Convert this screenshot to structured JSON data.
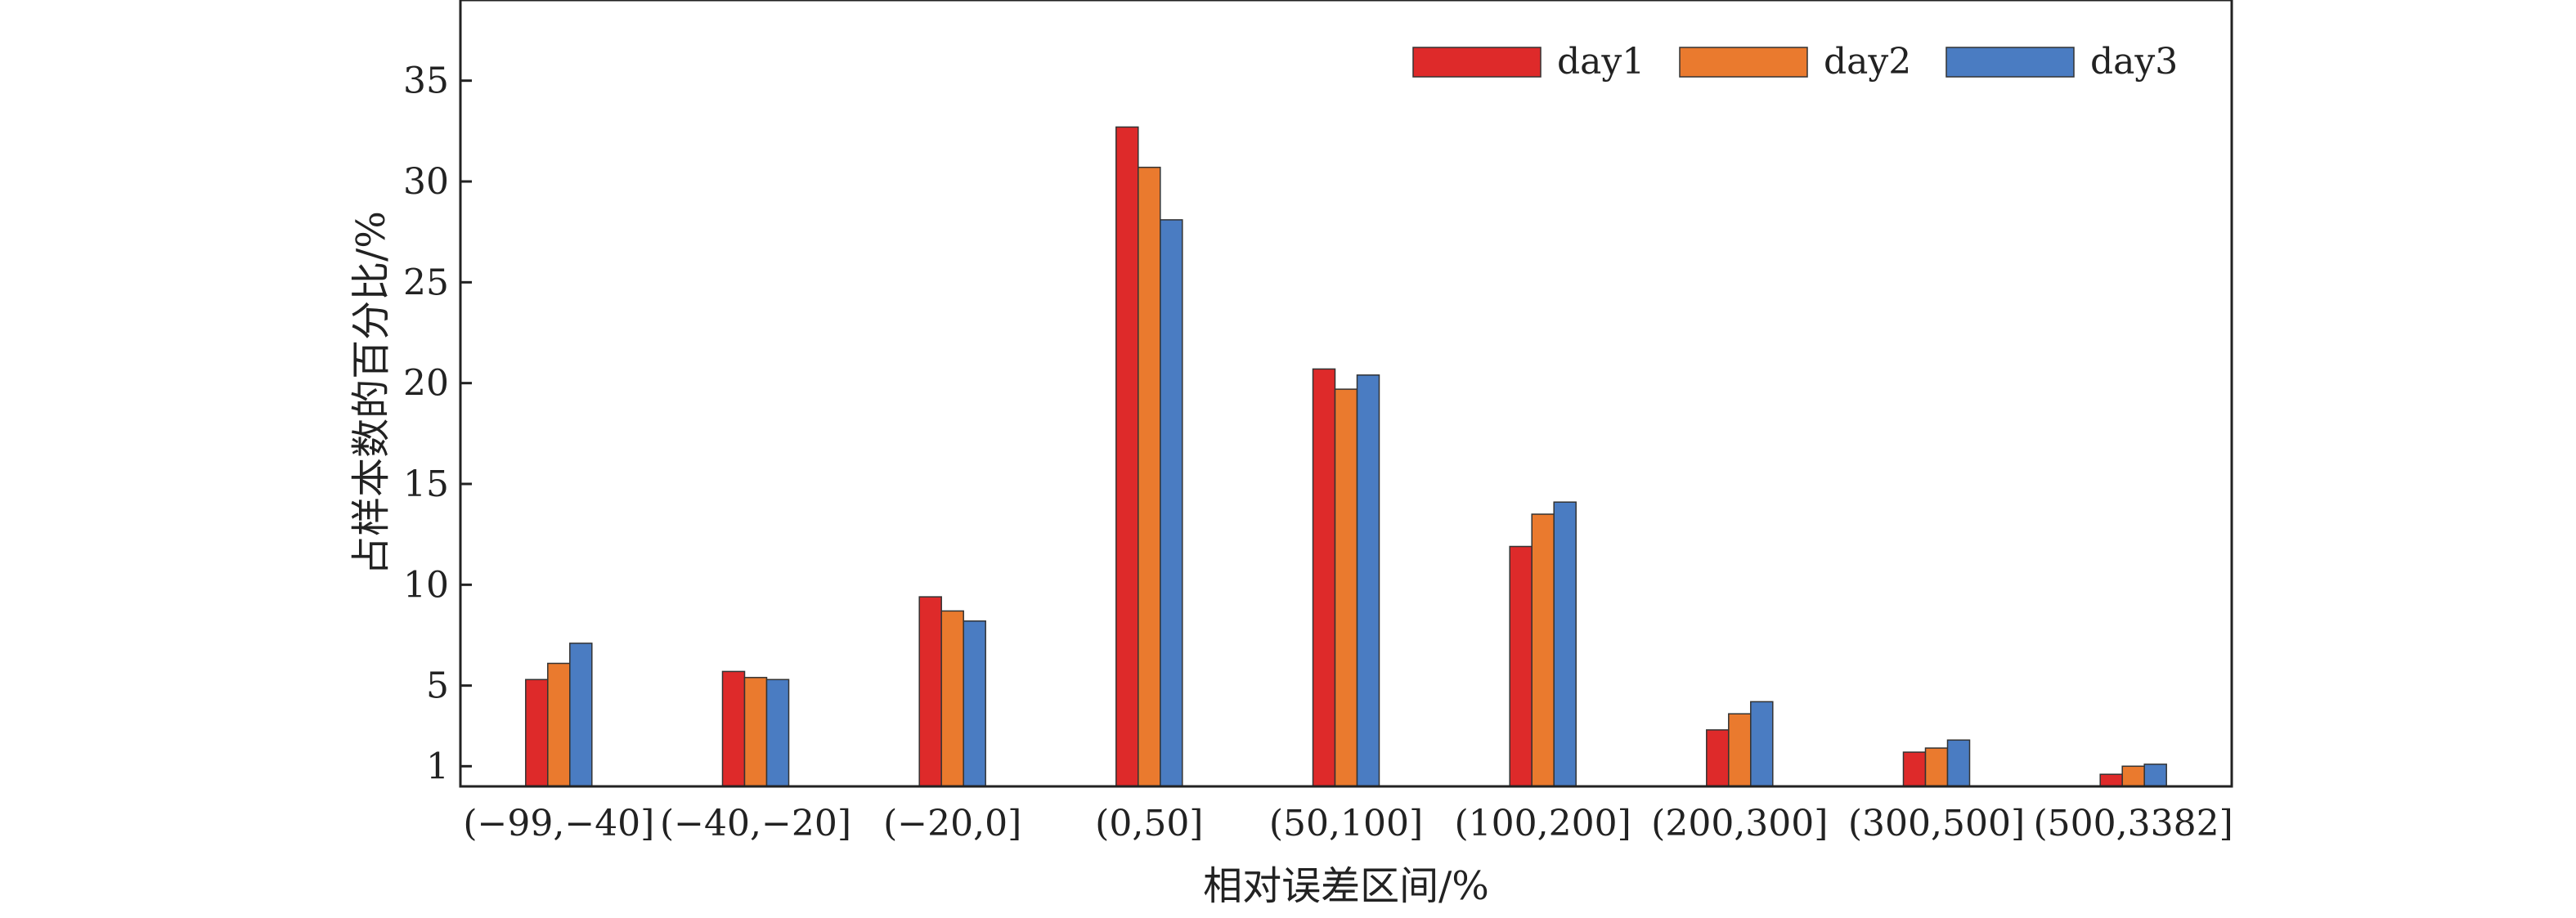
{
  "chart_data": {
    "type": "bar",
    "title": "",
    "xlabel": "相对误差区间/%",
    "ylabel": "占样本数的百分比/%",
    "categories": [
      "(−99,−40]",
      "(−40,−20]",
      "(−20,0]",
      "(0,50]",
      "(50,100]",
      "(100,200]",
      "(200,300]",
      "(300,500]",
      "(500,3382]"
    ],
    "series": [
      {
        "name": "day1",
        "color": "#de2a2a",
        "values": [
          5.3,
          5.7,
          9.4,
          32.7,
          20.7,
          11.9,
          2.8,
          1.7,
          0.6
        ]
      },
      {
        "name": "day2",
        "color": "#ea7a2e",
        "values": [
          6.1,
          5.4,
          8.7,
          30.7,
          19.7,
          13.5,
          3.6,
          1.9,
          1.0
        ]
      },
      {
        "name": "day3",
        "color": "#4a7cc2",
        "values": [
          7.1,
          5.3,
          8.2,
          28.1,
          20.4,
          14.1,
          4.2,
          2.3,
          1.1
        ]
      }
    ],
    "ylim": [
      0,
      39
    ],
    "yticks": [
      1,
      5,
      10,
      15,
      20,
      25,
      30,
      35
    ],
    "grid": false,
    "legend_position": "top-right"
  }
}
